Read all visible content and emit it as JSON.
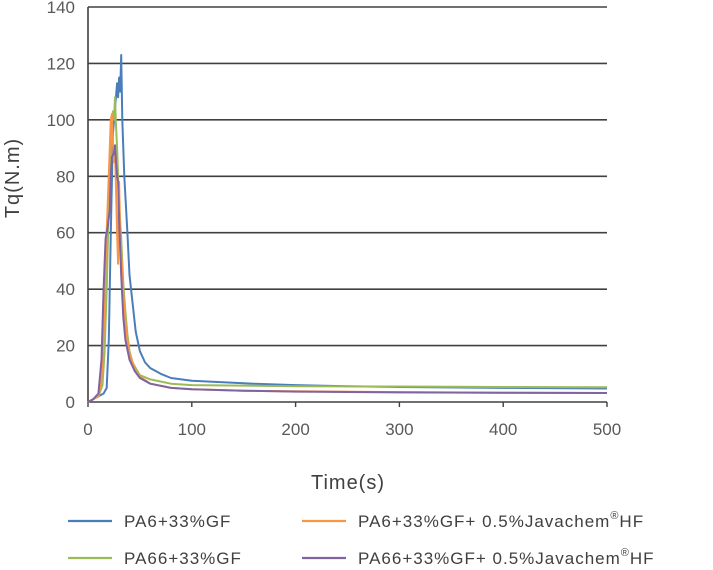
{
  "chart_data": {
    "type": "line",
    "xlabel": "Time(s)",
    "ylabel": "Tq(N.m)",
    "xlim": [
      0,
      500
    ],
    "ylim": [
      0,
      140
    ],
    "x_ticks": [
      "0",
      "100",
      "200",
      "300",
      "400",
      "500"
    ],
    "y_ticks": [
      "0",
      "20",
      "40",
      "60",
      "80",
      "100",
      "120",
      "140"
    ],
    "grid": "horizontal",
    "legend_position": "bottom",
    "series": [
      {
        "name": "PA6+33%GF",
        "color": "#4a7ebb",
        "x": [
          0,
          5,
          10,
          15,
          18,
          20,
          22,
          24,
          26,
          28,
          29,
          30,
          31,
          32,
          33,
          35,
          38,
          40,
          43,
          46,
          50,
          55,
          60,
          70,
          80,
          100,
          130,
          160,
          200,
          250,
          300,
          400,
          500
        ],
        "y": [
          0,
          1,
          2,
          3,
          5,
          22,
          60,
          95,
          104,
          113,
          108,
          115,
          110,
          123,
          100,
          80,
          60,
          45,
          35,
          25,
          18,
          14,
          12,
          10,
          8.5,
          7.5,
          7,
          6.5,
          6,
          5.6,
          5.3,
          5,
          4.8
        ]
      },
      {
        "name": "PA6+33%GF+ 0.5%Javachem®HF",
        "color": "#f79646",
        "x": [
          0,
          5,
          10,
          13,
          15,
          17,
          19,
          21,
          22,
          23,
          24,
          25,
          26,
          28,
          29,
          30,
          31,
          33,
          35,
          38,
          40,
          43,
          46,
          50,
          60,
          80,
          100,
          150,
          200,
          300,
          400,
          500
        ],
        "y": [
          0,
          1,
          2,
          8,
          25,
          50,
          70,
          90,
          100,
          102,
          92,
          85,
          90,
          60,
          49,
          78,
          60,
          45,
          32,
          22,
          17,
          14,
          11,
          9,
          6.5,
          5,
          4.5,
          4,
          3.8,
          3.5,
          3.3,
          3.2
        ]
      },
      {
        "name": "PA66+33%GF",
        "color": "#9bbb59",
        "x": [
          0,
          5,
          10,
          14,
          16,
          18,
          20,
          22,
          24,
          25,
          26,
          27,
          28,
          29,
          30,
          32,
          34,
          36,
          38,
          40,
          43,
          46,
          50,
          60,
          80,
          100,
          150,
          200,
          300,
          400,
          500
        ],
        "y": [
          0,
          1,
          2,
          6,
          18,
          40,
          70,
          95,
          103,
          100,
          108,
          98,
          90,
          80,
          70,
          58,
          42,
          32,
          24,
          18,
          14,
          12,
          9.5,
          8,
          6.5,
          6,
          5.8,
          5.6,
          5.5,
          5.3,
          5.2
        ]
      },
      {
        "name": "PA66+33%GF+ 0.5%Javachem®HF",
        "color": "#8064a2",
        "x": [
          0,
          5,
          10,
          13,
          15,
          17,
          19,
          21,
          22,
          23,
          25,
          26,
          27,
          28,
          29,
          30,
          32,
          34,
          36,
          40,
          45,
          50,
          60,
          80,
          100,
          150,
          200,
          300,
          400,
          500
        ],
        "y": [
          0,
          1,
          3,
          15,
          40,
          58,
          62,
          68,
          80,
          87,
          88,
          91,
          85,
          80,
          78,
          65,
          45,
          30,
          22,
          15,
          11,
          8.5,
          6.5,
          5,
          4.5,
          4,
          3.7,
          3.4,
          3.3,
          3.2
        ]
      }
    ]
  },
  "legend": {
    "items": [
      {
        "base": "PA6+33%GF",
        "sup": "",
        "tail": ""
      },
      {
        "base": "PA6+33%GF+ 0.5%Javachem",
        "sup": "®",
        "tail": "HF"
      },
      {
        "base": "PA66+33%GF",
        "sup": "",
        "tail": ""
      },
      {
        "base": "PA66+33%GF+ 0.5%Javachem",
        "sup": "®",
        "tail": "HF"
      }
    ]
  }
}
